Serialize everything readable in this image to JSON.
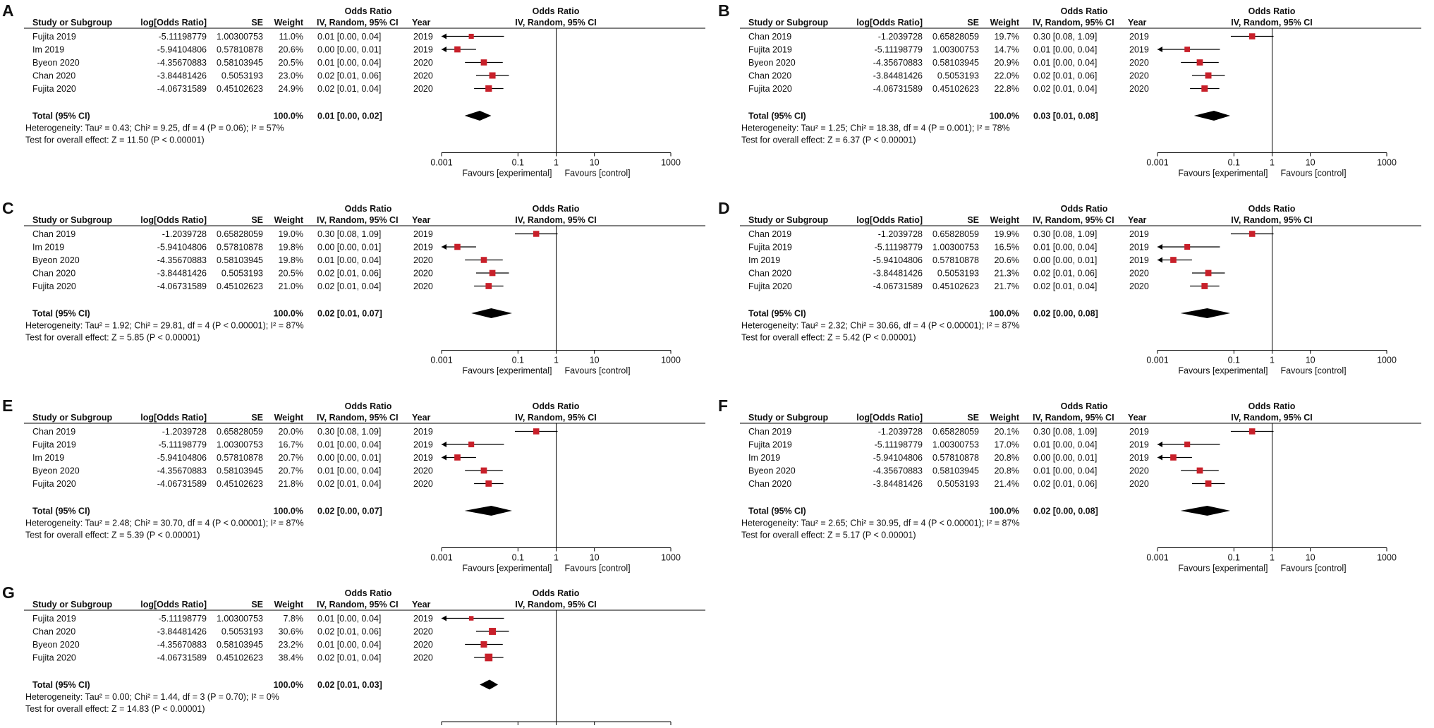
{
  "colors": {
    "marker": "#c8202a",
    "diamond": "#000000",
    "line": "#000000"
  },
  "headers": {
    "study": "Study or Subgroup",
    "logor": "log[Odds Ratio]",
    "se": "SE",
    "weight": "Weight",
    "or_group": "Odds Ratio",
    "or_method": "IV, Random, 95% CI",
    "year": "Year",
    "plot_group": "Odds Ratio",
    "plot_method": "IV, Random, 95% CI"
  },
  "axis": {
    "ticks": [
      "0.001",
      "0.1",
      "1",
      "10",
      "1000"
    ],
    "tick_values": [
      0.001,
      0.1,
      1,
      10,
      1000
    ],
    "favours_left": "Favours [experimental]",
    "favours_right": "Favours [control]"
  },
  "total_label": "Total (95% CI)",
  "chart_data": [
    {
      "type": "forest",
      "panel": "A",
      "total_weight": "100.0%",
      "total_ci": "0.01 [0.00, 0.02]",
      "total_or": 0.01,
      "total_lo": 0.004,
      "total_hi": 0.02,
      "heterogeneity": "Heterogeneity: Tau² = 0.43; Chi² = 9.25, df = 4 (P = 0.06); I² = 57%",
      "overall": "Test for overall effect: Z = 11.50 (P < 0.00001)",
      "studies": [
        {
          "name": "Fujita 2019",
          "logor": "-5.11198779",
          "se": "1.00300753",
          "weight": "11.0%",
          "ci": "0.01 [0.00, 0.04]",
          "year": "2019",
          "or": 0.006,
          "lo": 0.0008,
          "hi": 0.043,
          "w": 11.0
        },
        {
          "name": "Im 2019",
          "logor": "-5.94104806",
          "se": "0.57810878",
          "weight": "20.6%",
          "ci": "0.00 [0.00, 0.01]",
          "year": "2019",
          "or": 0.0026,
          "lo": 0.0008,
          "hi": 0.008,
          "w": 20.6
        },
        {
          "name": "Byeon 2020",
          "logor": "-4.35670883",
          "se": "0.58103945",
          "weight": "20.5%",
          "ci": "0.01 [0.00, 0.04]",
          "year": "2020",
          "or": 0.0128,
          "lo": 0.0041,
          "hi": 0.04,
          "w": 20.5
        },
        {
          "name": "Chan 2020",
          "logor": "-3.84481426",
          "se": "0.5053193",
          "weight": "23.0%",
          "ci": "0.02 [0.01, 0.06]",
          "year": "2020",
          "or": 0.0214,
          "lo": 0.008,
          "hi": 0.058,
          "w": 23.0
        },
        {
          "name": "Fujita 2020",
          "logor": "-4.06731589",
          "se": "0.45102623",
          "weight": "24.9%",
          "ci": "0.02 [0.01, 0.04]",
          "year": "2020",
          "or": 0.0171,
          "lo": 0.0071,
          "hi": 0.0415,
          "w": 24.9
        }
      ]
    },
    {
      "type": "forest",
      "panel": "B",
      "total_weight": "100.0%",
      "total_ci": "0.03 [0.01, 0.08]",
      "total_or": 0.03,
      "total_lo": 0.009,
      "total_hi": 0.08,
      "heterogeneity": "Heterogeneity: Tau² = 1.25; Chi² = 18.38, df = 4 (P = 0.001); I² = 78%",
      "overall": "Test for overall effect: Z = 6.37 (P < 0.00001)",
      "studies": [
        {
          "name": "Chan 2019",
          "logor": "-1.2039728",
          "se": "0.65828059",
          "weight": "19.7%",
          "ci": "0.30 [0.08, 1.09]",
          "year": "2019",
          "or": 0.3,
          "lo": 0.083,
          "hi": 1.09,
          "w": 19.7
        },
        {
          "name": "Fujita 2019",
          "logor": "-5.11198779",
          "se": "1.00300753",
          "weight": "14.7%",
          "ci": "0.01 [0.00, 0.04]",
          "year": "2019",
          "or": 0.006,
          "lo": 0.0008,
          "hi": 0.043,
          "w": 14.7
        },
        {
          "name": "Byeon 2020",
          "logor": "-4.35670883",
          "se": "0.58103945",
          "weight": "20.9%",
          "ci": "0.01 [0.00, 0.04]",
          "year": "2020",
          "or": 0.0128,
          "lo": 0.0041,
          "hi": 0.04,
          "w": 20.9
        },
        {
          "name": "Chan 2020",
          "logor": "-3.84481426",
          "se": "0.5053193",
          "weight": "22.0%",
          "ci": "0.02 [0.01, 0.06]",
          "year": "2020",
          "or": 0.0214,
          "lo": 0.008,
          "hi": 0.058,
          "w": 22.0
        },
        {
          "name": "Fujita 2020",
          "logor": "-4.06731589",
          "se": "0.45102623",
          "weight": "22.8%",
          "ci": "0.02 [0.01, 0.04]",
          "year": "2020",
          "or": 0.0171,
          "lo": 0.0071,
          "hi": 0.0415,
          "w": 22.8
        }
      ]
    },
    {
      "type": "forest",
      "panel": "C",
      "total_weight": "100.0%",
      "total_ci": "0.02 [0.01, 0.07]",
      "total_or": 0.02,
      "total_lo": 0.006,
      "total_hi": 0.07,
      "heterogeneity": "Heterogeneity: Tau² = 1.92; Chi² = 29.81, df = 4 (P < 0.00001); I² = 87%",
      "overall": "Test for overall effect: Z = 5.85 (P < 0.00001)",
      "studies": [
        {
          "name": "Chan 2019",
          "logor": "-1.2039728",
          "se": "0.65828059",
          "weight": "19.0%",
          "ci": "0.30 [0.08, 1.09]",
          "year": "2019",
          "or": 0.3,
          "lo": 0.083,
          "hi": 1.09,
          "w": 19.0
        },
        {
          "name": "Im 2019",
          "logor": "-5.94104806",
          "se": "0.57810878",
          "weight": "19.8%",
          "ci": "0.00 [0.00, 0.01]",
          "year": "2019",
          "or": 0.0026,
          "lo": 0.0008,
          "hi": 0.008,
          "w": 19.8
        },
        {
          "name": "Byeon 2020",
          "logor": "-4.35670883",
          "se": "0.58103945",
          "weight": "19.8%",
          "ci": "0.01 [0.00, 0.04]",
          "year": "2020",
          "or": 0.0128,
          "lo": 0.0041,
          "hi": 0.04,
          "w": 19.8
        },
        {
          "name": "Chan 2020",
          "logor": "-3.84481426",
          "se": "0.5053193",
          "weight": "20.5%",
          "ci": "0.02 [0.01, 0.06]",
          "year": "2020",
          "or": 0.0214,
          "lo": 0.008,
          "hi": 0.058,
          "w": 20.5
        },
        {
          "name": "Fujita 2020",
          "logor": "-4.06731589",
          "se": "0.45102623",
          "weight": "21.0%",
          "ci": "0.02 [0.01, 0.04]",
          "year": "2020",
          "or": 0.0171,
          "lo": 0.0071,
          "hi": 0.0415,
          "w": 21.0
        }
      ]
    },
    {
      "type": "forest",
      "panel": "D",
      "total_weight": "100.0%",
      "total_ci": "0.02 [0.00, 0.08]",
      "total_or": 0.02,
      "total_lo": 0.004,
      "total_hi": 0.08,
      "heterogeneity": "Heterogeneity: Tau² = 2.32; Chi² = 30.66, df = 4 (P < 0.00001); I² = 87%",
      "overall": "Test for overall effect: Z = 5.42 (P < 0.00001)",
      "studies": [
        {
          "name": "Chan 2019",
          "logor": "-1.2039728",
          "se": "0.65828059",
          "weight": "19.9%",
          "ci": "0.30 [0.08, 1.09]",
          "year": "2019",
          "or": 0.3,
          "lo": 0.083,
          "hi": 1.09,
          "w": 19.9
        },
        {
          "name": "Fujita 2019",
          "logor": "-5.11198779",
          "se": "1.00300753",
          "weight": "16.5%",
          "ci": "0.01 [0.00, 0.04]",
          "year": "2019",
          "or": 0.006,
          "lo": 0.0008,
          "hi": 0.043,
          "w": 16.5
        },
        {
          "name": "Im 2019",
          "logor": "-5.94104806",
          "se": "0.57810878",
          "weight": "20.6%",
          "ci": "0.00 [0.00, 0.01]",
          "year": "2019",
          "or": 0.0026,
          "lo": 0.0008,
          "hi": 0.008,
          "w": 20.6
        },
        {
          "name": "Chan 2020",
          "logor": "-3.84481426",
          "se": "0.5053193",
          "weight": "21.3%",
          "ci": "0.02 [0.01, 0.06]",
          "year": "2020",
          "or": 0.0214,
          "lo": 0.008,
          "hi": 0.058,
          "w": 21.3
        },
        {
          "name": "Fujita 2020",
          "logor": "-4.06731589",
          "se": "0.45102623",
          "weight": "21.7%",
          "ci": "0.02 [0.01, 0.04]",
          "year": "2020",
          "or": 0.0171,
          "lo": 0.0071,
          "hi": 0.0415,
          "w": 21.7
        }
      ]
    },
    {
      "type": "forest",
      "panel": "E",
      "total_weight": "100.0%",
      "total_ci": "0.02 [0.00, 0.07]",
      "total_or": 0.02,
      "total_lo": 0.004,
      "total_hi": 0.07,
      "heterogeneity": "Heterogeneity: Tau² = 2.48; Chi² = 30.70, df = 4 (P < 0.00001); I² = 87%",
      "overall": "Test for overall effect: Z = 5.39 (P < 0.00001)",
      "studies": [
        {
          "name": "Chan 2019",
          "logor": "-1.2039728",
          "se": "0.65828059",
          "weight": "20.0%",
          "ci": "0.30 [0.08, 1.09]",
          "year": "2019",
          "or": 0.3,
          "lo": 0.083,
          "hi": 1.09,
          "w": 20.0
        },
        {
          "name": "Fujita 2019",
          "logor": "-5.11198779",
          "se": "1.00300753",
          "weight": "16.7%",
          "ci": "0.01 [0.00, 0.04]",
          "year": "2019",
          "or": 0.006,
          "lo": 0.0008,
          "hi": 0.043,
          "w": 16.7
        },
        {
          "name": "Im 2019",
          "logor": "-5.94104806",
          "se": "0.57810878",
          "weight": "20.7%",
          "ci": "0.00 [0.00, 0.01]",
          "year": "2019",
          "or": 0.0026,
          "lo": 0.0008,
          "hi": 0.008,
          "w": 20.7
        },
        {
          "name": "Byeon 2020",
          "logor": "-4.35670883",
          "se": "0.58103945",
          "weight": "20.7%",
          "ci": "0.01 [0.00, 0.04]",
          "year": "2020",
          "or": 0.0128,
          "lo": 0.0041,
          "hi": 0.04,
          "w": 20.7
        },
        {
          "name": "Fujita 2020",
          "logor": "-4.06731589",
          "se": "0.45102623",
          "weight": "21.8%",
          "ci": "0.02 [0.01, 0.04]",
          "year": "2020",
          "or": 0.0171,
          "lo": 0.0071,
          "hi": 0.0415,
          "w": 21.8
        }
      ]
    },
    {
      "type": "forest",
      "panel": "F",
      "total_weight": "100.0%",
      "total_ci": "0.02 [0.00, 0.08]",
      "total_or": 0.02,
      "total_lo": 0.004,
      "total_hi": 0.08,
      "heterogeneity": "Heterogeneity: Tau² = 2.65; Chi² = 30.95, df = 4 (P < 0.00001); I² = 87%",
      "overall": "Test for overall effect: Z = 5.17 (P < 0.00001)",
      "studies": [
        {
          "name": "Chan 2019",
          "logor": "-1.2039728",
          "se": "0.65828059",
          "weight": "20.1%",
          "ci": "0.30 [0.08, 1.09]",
          "year": "2019",
          "or": 0.3,
          "lo": 0.083,
          "hi": 1.09,
          "w": 20.1
        },
        {
          "name": "Fujita 2019",
          "logor": "-5.11198779",
          "se": "1.00300753",
          "weight": "17.0%",
          "ci": "0.01 [0.00, 0.04]",
          "year": "2019",
          "or": 0.006,
          "lo": 0.0008,
          "hi": 0.043,
          "w": 17.0
        },
        {
          "name": "Im 2019",
          "logor": "-5.94104806",
          "se": "0.57810878",
          "weight": "20.8%",
          "ci": "0.00 [0.00, 0.01]",
          "year": "2019",
          "or": 0.0026,
          "lo": 0.0008,
          "hi": 0.008,
          "w": 20.8
        },
        {
          "name": "Byeon 2020",
          "logor": "-4.35670883",
          "se": "0.58103945",
          "weight": "20.8%",
          "ci": "0.01 [0.00, 0.04]",
          "year": "2020",
          "or": 0.0128,
          "lo": 0.0041,
          "hi": 0.04,
          "w": 20.8
        },
        {
          "name": "Chan 2020",
          "logor": "-3.84481426",
          "se": "0.5053193",
          "weight": "21.4%",
          "ci": "0.02 [0.01, 0.06]",
          "year": "2020",
          "or": 0.0214,
          "lo": 0.008,
          "hi": 0.058,
          "w": 21.4
        }
      ]
    },
    {
      "type": "forest",
      "panel": "G",
      "total_weight": "100.0%",
      "total_ci": "0.02 [0.01, 0.03]",
      "total_or": 0.018,
      "total_lo": 0.01,
      "total_hi": 0.03,
      "heterogeneity": "Heterogeneity: Tau² = 0.00; Chi² = 1.44, df = 3 (P = 0.70); I² = 0%",
      "overall": "Test for overall effect: Z = 14.83 (P < 0.00001)",
      "studies": [
        {
          "name": "Fujita 2019",
          "logor": "-5.11198779",
          "se": "1.00300753",
          "weight": "7.8%",
          "ci": "0.01 [0.00, 0.04]",
          "year": "2019",
          "or": 0.006,
          "lo": 0.0008,
          "hi": 0.043,
          "w": 7.8
        },
        {
          "name": "Chan 2020",
          "logor": "-3.84481426",
          "se": "0.5053193",
          "weight": "30.6%",
          "ci": "0.02 [0.01, 0.06]",
          "year": "2020",
          "or": 0.0214,
          "lo": 0.008,
          "hi": 0.058,
          "w": 30.6
        },
        {
          "name": "Byeon 2020",
          "logor": "-4.35670883",
          "se": "0.58103945",
          "weight": "23.2%",
          "ci": "0.01 [0.00, 0.04]",
          "year": "2020",
          "or": 0.0128,
          "lo": 0.0041,
          "hi": 0.04,
          "w": 23.2
        },
        {
          "name": "Fujita 2020",
          "logor": "-4.06731589",
          "se": "0.45102623",
          "weight": "38.4%",
          "ci": "0.02 [0.01, 0.04]",
          "year": "2020",
          "or": 0.0171,
          "lo": 0.0071,
          "hi": 0.0415,
          "w": 38.4
        }
      ]
    }
  ]
}
